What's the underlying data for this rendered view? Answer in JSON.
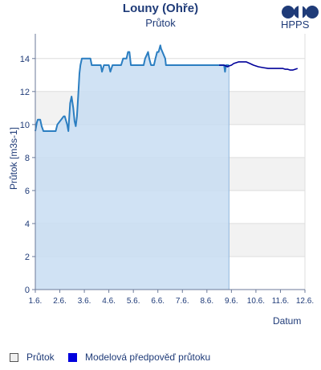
{
  "header": {
    "title": "Louny (Ohře)",
    "subtitle": "Průtok",
    "logo_text": "HPPS"
  },
  "colors": {
    "text": "#1f3b78",
    "fill": "#c8ddf2",
    "observed_line": "#2b7ec1",
    "forecast_line": "#00009a",
    "band": "#f2f2f2"
  },
  "legend": {
    "observed": "Průtok",
    "forecast": "Modelová předpověď průtoku"
  },
  "chart_data": {
    "type": "line",
    "title": "Louny (Ohře)",
    "subtitle": "Průtok",
    "xlabel": "Datum",
    "ylabel": "Průtok [m3s-1]",
    "x_ticks": [
      "1.6.",
      "2.6.",
      "3.6.",
      "4.6.",
      "5.6.",
      "6.6.",
      "7.6.",
      "8.6.",
      "9.6.",
      "10.6.",
      "11.6.",
      "12.6."
    ],
    "xlim": [
      0,
      11
    ],
    "ylim": [
      0,
      15.5
    ],
    "y_ticks": [
      0,
      2,
      4,
      6,
      8,
      10,
      12,
      14
    ],
    "grid": true,
    "legend_position": "bottom",
    "series": [
      {
        "name": "Průtok",
        "x": [
          0.0,
          0.06,
          0.1,
          0.2,
          0.26,
          0.33,
          0.4,
          0.44,
          0.5,
          0.83,
          0.9,
          1.16,
          1.2,
          1.3,
          1.35,
          1.42,
          1.48,
          1.55,
          1.6,
          1.65,
          1.7,
          1.75,
          1.8,
          1.84,
          1.9,
          1.95,
          2.0,
          2.05,
          2.1,
          2.15,
          2.2,
          2.25,
          2.3,
          2.45,
          2.67,
          2.72,
          2.8,
          3.0,
          3.06,
          3.15,
          3.5,
          3.58,
          3.72,
          3.78,
          3.84,
          3.9,
          4.0,
          4.03,
          4.42,
          4.48,
          4.6,
          4.65,
          4.72,
          4.78,
          4.84,
          4.9,
          4.97,
          5.0,
          5.03,
          5.1,
          5.13,
          5.3,
          5.33,
          5.4,
          5.46,
          5.53,
          5.6,
          5.66,
          5.71,
          5.75,
          5.8,
          5.83,
          5.86,
          5.9,
          5.95,
          6.0,
          6.1,
          6.2,
          6.3,
          6.4,
          6.5,
          6.6,
          6.7,
          6.8,
          6.9,
          7.0,
          7.1,
          7.2,
          7.3,
          7.4,
          7.5,
          7.6,
          7.7,
          7.74,
          7.78,
          7.84,
          7.9
        ],
        "y": [
          9.6,
          10.1,
          10.3,
          10.3,
          9.9,
          9.6,
          9.6,
          9.6,
          9.6,
          9.6,
          10.0,
          10.5,
          10.5,
          10.0,
          9.6,
          11.3,
          11.7,
          11.0,
          10.2,
          9.9,
          10.5,
          11.8,
          13.1,
          13.6,
          14.0,
          14.0,
          14.0,
          14.0,
          14.0,
          14.0,
          14.0,
          14.0,
          13.6,
          13.6,
          13.6,
          13.2,
          13.6,
          13.6,
          13.2,
          13.6,
          13.6,
          14.0,
          14.0,
          14.4,
          14.4,
          13.6,
          13.6,
          13.6,
          13.6,
          14.0,
          14.4,
          14.0,
          13.6,
          13.6,
          13.6,
          14.0,
          14.4,
          14.4,
          14.4,
          14.8,
          14.6,
          14.0,
          13.6,
          13.6,
          13.6,
          13.6,
          13.6,
          13.6,
          13.6,
          13.6,
          13.6,
          13.6,
          13.6,
          13.6,
          13.6,
          13.6,
          13.6,
          13.6,
          13.6,
          13.6,
          13.6,
          13.6,
          13.6,
          13.6,
          13.6,
          13.6,
          13.6,
          13.6,
          13.6,
          13.6,
          13.6,
          13.6,
          13.6,
          13.2,
          13.6,
          13.6,
          13.6
        ]
      },
      {
        "name": "Modelová předpověď průtoku",
        "x": [
          7.5,
          7.7,
          7.84,
          7.9,
          8.0,
          8.1,
          8.2,
          8.3,
          8.4,
          8.5,
          8.6,
          8.75,
          8.9,
          9.0,
          9.1,
          9.3,
          9.5,
          9.7,
          9.9,
          10.0,
          10.1,
          10.2,
          10.3,
          10.4,
          10.5,
          10.6,
          10.7
        ],
        "y": [
          13.6,
          13.6,
          13.5,
          13.55,
          13.6,
          13.7,
          13.75,
          13.8,
          13.8,
          13.8,
          13.8,
          13.7,
          13.6,
          13.55,
          13.5,
          13.45,
          13.4,
          13.4,
          13.4,
          13.4,
          13.4,
          13.35,
          13.35,
          13.3,
          13.3,
          13.35,
          13.4
        ]
      }
    ]
  }
}
